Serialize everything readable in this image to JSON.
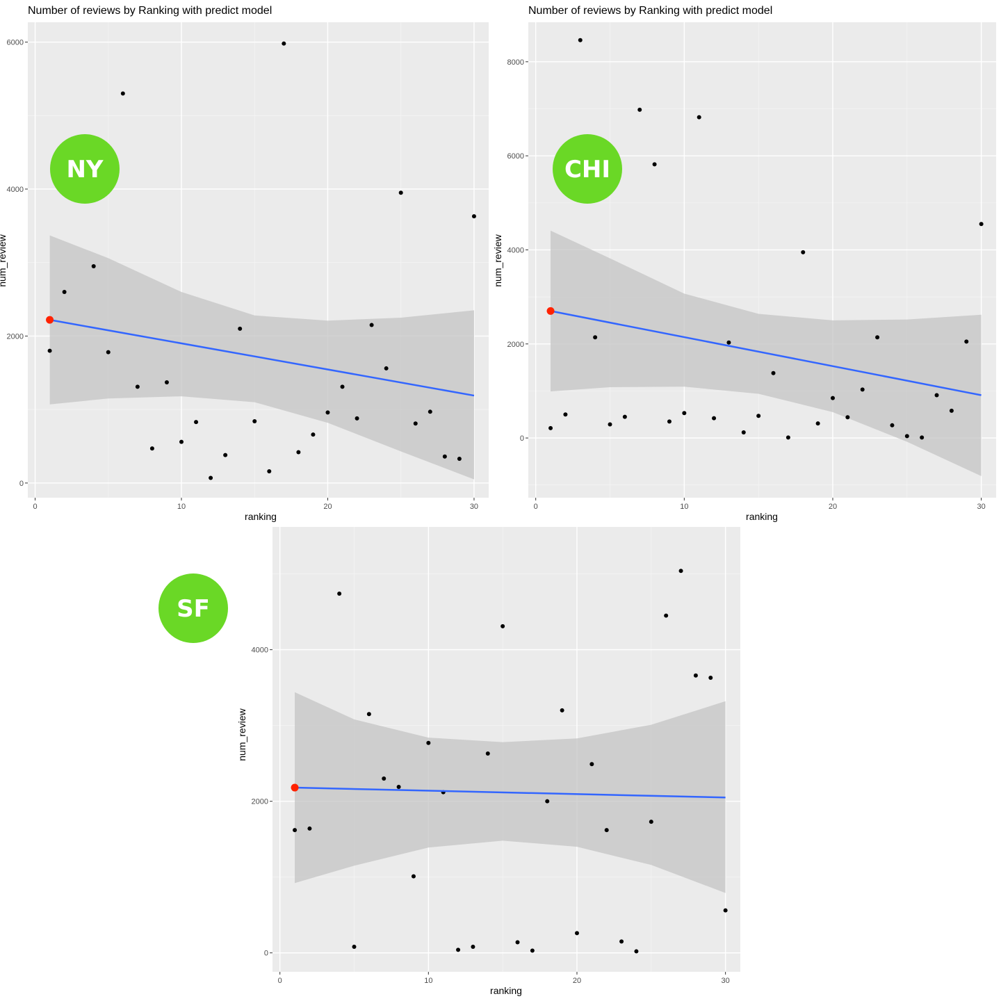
{
  "colors": {
    "panel_bg": "#ebebeb",
    "grid_major": "#ffffff",
    "grid_minor": "#f5f5f5",
    "ribbon": "#c4c4c4",
    "fit_line": "#3366ff",
    "highlight": "#ff2200",
    "points": "#000000",
    "badge": "#6ad826"
  },
  "chart_data": [
    {
      "type": "scatter",
      "title": "Number of reviews by Ranking with predict model",
      "xlabel": "ranking",
      "ylabel": "num_review",
      "badge": "NY",
      "xlim": [
        -0.5,
        31
      ],
      "ylim": [
        -200,
        6270
      ],
      "x_ticks": [
        0,
        10,
        20,
        30
      ],
      "y_ticks": [
        0,
        2000,
        4000,
        6000
      ],
      "x_tick_labels": [
        "0",
        "10",
        "20",
        "30"
      ],
      "y_tick_labels": [
        "0",
        "2000",
        "4000",
        "6000"
      ],
      "points": [
        {
          "x": 1,
          "y": 1800
        },
        {
          "x": 2,
          "y": 2600
        },
        {
          "x": 4,
          "y": 2950
        },
        {
          "x": 5,
          "y": 1780
        },
        {
          "x": 6,
          "y": 5300
        },
        {
          "x": 7,
          "y": 1310
        },
        {
          "x": 8,
          "y": 470
        },
        {
          "x": 9,
          "y": 1370
        },
        {
          "x": 10,
          "y": 560
        },
        {
          "x": 11,
          "y": 830
        },
        {
          "x": 12,
          "y": 70
        },
        {
          "x": 13,
          "y": 380
        },
        {
          "x": 14,
          "y": 2100
        },
        {
          "x": 15,
          "y": 840
        },
        {
          "x": 16,
          "y": 160
        },
        {
          "x": 17,
          "y": 5980
        },
        {
          "x": 18,
          "y": 420
        },
        {
          "x": 19,
          "y": 660
        },
        {
          "x": 20,
          "y": 960
        },
        {
          "x": 21,
          "y": 1310
        },
        {
          "x": 22,
          "y": 880
        },
        {
          "x": 23,
          "y": 2150
        },
        {
          "x": 24,
          "y": 1560
        },
        {
          "x": 25,
          "y": 3950
        },
        {
          "x": 26,
          "y": 810
        },
        {
          "x": 27,
          "y": 970
        },
        {
          "x": 28,
          "y": 360
        },
        {
          "x": 29,
          "y": 330
        },
        {
          "x": 30,
          "y": 3630
        }
      ],
      "fit": {
        "x": [
          1,
          30
        ],
        "y": [
          2220,
          1190
        ]
      },
      "band": {
        "x": [
          1,
          5,
          10,
          15,
          20,
          25,
          30
        ],
        "lower": [
          1070,
          1150,
          1180,
          1100,
          820,
          430,
          50
        ],
        "upper": [
          3370,
          3060,
          2600,
          2280,
          2210,
          2250,
          2350
        ]
      },
      "highlight": {
        "x": 1,
        "y": 2220
      }
    },
    {
      "type": "scatter",
      "title": "Number of reviews by Ranking with predict model",
      "xlabel": "ranking",
      "ylabel": "num_review",
      "badge": "CHI",
      "xlim": [
        -0.5,
        31
      ],
      "ylim": [
        -1270,
        8840
      ],
      "x_ticks": [
        0,
        10,
        20,
        30
      ],
      "y_ticks": [
        0,
        2000,
        4000,
        6000,
        8000
      ],
      "x_tick_labels": [
        "0",
        "10",
        "20",
        "30"
      ],
      "y_tick_labels": [
        "0",
        "2000",
        "4000",
        "6000",
        "8000"
      ],
      "points": [
        {
          "x": 1,
          "y": 210
        },
        {
          "x": 2,
          "y": 500
        },
        {
          "x": 3,
          "y": 8460
        },
        {
          "x": 4,
          "y": 2140
        },
        {
          "x": 5,
          "y": 290
        },
        {
          "x": 6,
          "y": 450
        },
        {
          "x": 7,
          "y": 6980
        },
        {
          "x": 8,
          "y": 5820
        },
        {
          "x": 9,
          "y": 350
        },
        {
          "x": 10,
          "y": 530
        },
        {
          "x": 11,
          "y": 6820
        },
        {
          "x": 12,
          "y": 420
        },
        {
          "x": 13,
          "y": 2030
        },
        {
          "x": 14,
          "y": 120
        },
        {
          "x": 15,
          "y": 470
        },
        {
          "x": 16,
          "y": 1380
        },
        {
          "x": 17,
          "y": 10
        },
        {
          "x": 18,
          "y": 3950
        },
        {
          "x": 19,
          "y": 310
        },
        {
          "x": 20,
          "y": 850
        },
        {
          "x": 21,
          "y": 440
        },
        {
          "x": 22,
          "y": 1030
        },
        {
          "x": 23,
          "y": 2140
        },
        {
          "x": 24,
          "y": 270
        },
        {
          "x": 25,
          "y": 40
        },
        {
          "x": 26,
          "y": 10
        },
        {
          "x": 27,
          "y": 910
        },
        {
          "x": 28,
          "y": 580
        },
        {
          "x": 29,
          "y": 2050
        },
        {
          "x": 30,
          "y": 4550
        }
      ],
      "fit": {
        "x": [
          1,
          30
        ],
        "y": [
          2700,
          910
        ]
      },
      "band": {
        "x": [
          1,
          5,
          10,
          15,
          20,
          25,
          30
        ],
        "lower": [
          990,
          1080,
          1090,
          940,
          550,
          -80,
          -810
        ],
        "upper": [
          4410,
          3820,
          3070,
          2640,
          2500,
          2520,
          2620
        ]
      },
      "highlight": {
        "x": 1,
        "y": 2700
      }
    },
    {
      "type": "scatter",
      "title": "",
      "xlabel": "ranking",
      "ylabel": "num_review",
      "badge": "SF",
      "xlim": [
        -0.5,
        31
      ],
      "ylim": [
        -250,
        5620
      ],
      "x_ticks": [
        0,
        10,
        20,
        30
      ],
      "y_ticks": [
        0,
        2000,
        4000
      ],
      "x_tick_labels": [
        "0",
        "10",
        "20",
        "30"
      ],
      "y_tick_labels": [
        "0",
        "2000",
        "4000"
      ],
      "points": [
        {
          "x": 1,
          "y": 1620
        },
        {
          "x": 2,
          "y": 1640
        },
        {
          "x": 4,
          "y": 4740
        },
        {
          "x": 5,
          "y": 80
        },
        {
          "x": 6,
          "y": 3150
        },
        {
          "x": 7,
          "y": 2300
        },
        {
          "x": 8,
          "y": 2190
        },
        {
          "x": 9,
          "y": 1010
        },
        {
          "x": 10,
          "y": 2770
        },
        {
          "x": 11,
          "y": 2120
        },
        {
          "x": 12,
          "y": 40
        },
        {
          "x": 13,
          "y": 80
        },
        {
          "x": 14,
          "y": 2630
        },
        {
          "x": 15,
          "y": 4310
        },
        {
          "x": 16,
          "y": 140
        },
        {
          "x": 17,
          "y": 30
        },
        {
          "x": 18,
          "y": 2000
        },
        {
          "x": 19,
          "y": 3200
        },
        {
          "x": 20,
          "y": 260
        },
        {
          "x": 21,
          "y": 2490
        },
        {
          "x": 22,
          "y": 1620
        },
        {
          "x": 23,
          "y": 150
        },
        {
          "x": 24,
          "y": 20
        },
        {
          "x": 25,
          "y": 1730
        },
        {
          "x": 26,
          "y": 4450
        },
        {
          "x": 27,
          "y": 5040
        },
        {
          "x": 28,
          "y": 3660
        },
        {
          "x": 29,
          "y": 3630
        },
        {
          "x": 30,
          "y": 560
        }
      ],
      "fit": {
        "x": [
          1,
          30
        ],
        "y": [
          2180,
          2050
        ]
      },
      "band": {
        "x": [
          1,
          5,
          10,
          15,
          20,
          25,
          30
        ],
        "lower": [
          920,
          1150,
          1390,
          1480,
          1400,
          1160,
          790
        ],
        "upper": [
          3440,
          3080,
          2840,
          2780,
          2830,
          3010,
          3320
        ]
      },
      "highlight": {
        "x": 1,
        "y": 2180
      }
    }
  ]
}
